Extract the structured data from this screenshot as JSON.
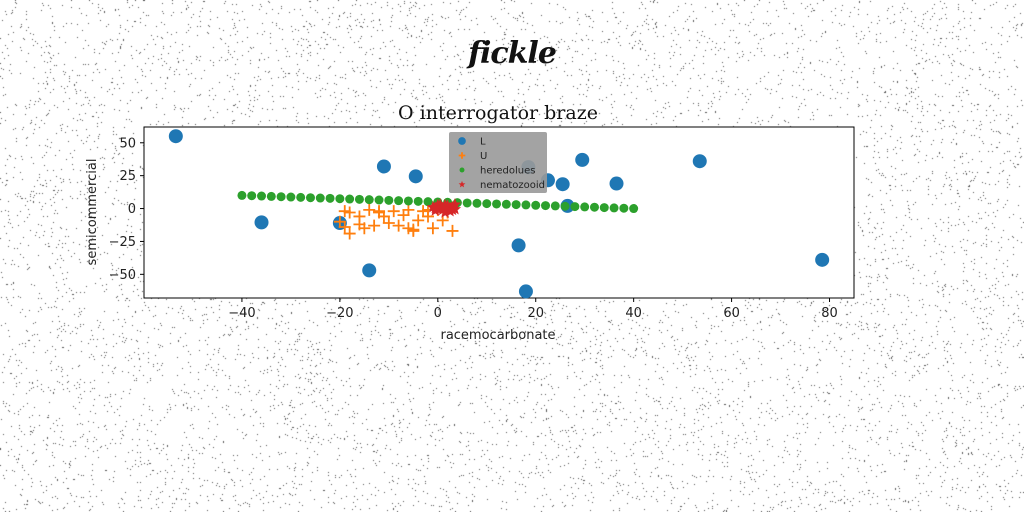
{
  "heading": "fickle",
  "chart_data": {
    "type": "scatter",
    "title": "O interrogator braze",
    "xlabel": "racemocarbonate",
    "ylabel": "semicommercial",
    "xlim": [
      -60,
      85
    ],
    "ylim": [
      -68,
      62
    ],
    "xticks": [
      -40,
      -20,
      0,
      20,
      40,
      60,
      80
    ],
    "yticks": [
      -50,
      -25,
      0,
      25,
      50
    ],
    "grid": false,
    "legend_position": "top-center",
    "series": [
      {
        "name": "L",
        "marker": "circle",
        "color": "#1f77b4",
        "points": [
          [
            -53.5,
            55
          ],
          [
            -36,
            -10.5
          ],
          [
            -20,
            -11
          ],
          [
            -14,
            -47
          ],
          [
            -11,
            32
          ],
          [
            -4.5,
            24.5
          ],
          [
            18.5,
            31.5
          ],
          [
            22.5,
            21.5
          ],
          [
            25.5,
            18.5
          ],
          [
            26.5,
            2
          ],
          [
            29.5,
            37
          ],
          [
            36.5,
            19
          ],
          [
            53.5,
            36
          ],
          [
            78.5,
            -39
          ],
          [
            16.5,
            -28
          ],
          [
            18,
            -63
          ]
        ]
      },
      {
        "name": "U",
        "marker": "plus",
        "color": "#ff7f0e",
        "points": [
          [
            -20,
            -10
          ],
          [
            -19,
            -14
          ],
          [
            -18,
            -19
          ],
          [
            -19,
            -2
          ],
          [
            -16,
            -6
          ],
          [
            -15,
            -15
          ],
          [
            -14,
            -1
          ],
          [
            -13,
            -13
          ],
          [
            -12,
            -3
          ],
          [
            -11,
            -6
          ],
          [
            -10,
            -11
          ],
          [
            -9,
            -2
          ],
          [
            -8,
            -13
          ],
          [
            -7,
            -5
          ],
          [
            -6,
            -1
          ],
          [
            -5,
            -16
          ],
          [
            -5,
            -17
          ],
          [
            -4,
            -9
          ],
          [
            -3,
            -2
          ],
          [
            -2,
            -6
          ],
          [
            -1,
            -15
          ],
          [
            0,
            -1
          ],
          [
            1,
            -9
          ],
          [
            2,
            -3
          ],
          [
            3,
            -17
          ],
          [
            -16,
            -12
          ],
          [
            -12,
            -2
          ],
          [
            -6,
            -15
          ],
          [
            -18,
            -3
          ],
          [
            -2,
            -1
          ]
        ]
      },
      {
        "name": "heredolues",
        "marker": "circle-small",
        "color": "#2ca02c",
        "points": [
          [
            -40,
            10
          ],
          [
            -38,
            9.75
          ],
          [
            -36,
            9.5
          ],
          [
            -34,
            9.25
          ],
          [
            -32,
            9
          ],
          [
            -30,
            8.75
          ],
          [
            -28,
            8.5
          ],
          [
            -26,
            8.25
          ],
          [
            -24,
            8
          ],
          [
            -22,
            7.75
          ],
          [
            -20,
            7.5
          ],
          [
            -18,
            7.25
          ],
          [
            -16,
            7
          ],
          [
            -14,
            6.75
          ],
          [
            -12,
            6.5
          ],
          [
            -10,
            6.25
          ],
          [
            -8,
            6
          ],
          [
            -6,
            5.75
          ],
          [
            -4,
            5.5
          ],
          [
            -2,
            5.25
          ],
          [
            0,
            5
          ],
          [
            2,
            4.75
          ],
          [
            4,
            4.5
          ],
          [
            6,
            4.25
          ],
          [
            8,
            4
          ],
          [
            10,
            3.75
          ],
          [
            12,
            3.5
          ],
          [
            14,
            3.25
          ],
          [
            16,
            3
          ],
          [
            18,
            2.75
          ],
          [
            20,
            2.5
          ],
          [
            22,
            2.25
          ],
          [
            24,
            2
          ],
          [
            26,
            1.75
          ],
          [
            28,
            1.5
          ],
          [
            30,
            1.25
          ],
          [
            32,
            1
          ],
          [
            34,
            0.75
          ],
          [
            36,
            0.5
          ],
          [
            38,
            0.25
          ],
          [
            40,
            0
          ]
        ]
      },
      {
        "name": "nematozooid",
        "marker": "star",
        "color": "#d62728",
        "points": [
          [
            0,
            0
          ],
          [
            0.5,
            1.5
          ],
          [
            1,
            -1
          ],
          [
            1.5,
            2.5
          ],
          [
            2,
            0.5
          ],
          [
            2.5,
            -2
          ],
          [
            3,
            1
          ],
          [
            3.5,
            3
          ],
          [
            -0.5,
            -1.5
          ],
          [
            0.5,
            3
          ],
          [
            1.5,
            -3
          ],
          [
            2,
            2
          ],
          [
            -1,
            1
          ],
          [
            3,
            -1
          ],
          [
            0,
            2.5
          ],
          [
            2.5,
            0
          ],
          [
            1,
            0.5
          ],
          [
            -0.5,
            0.5
          ],
          [
            1.5,
            1
          ],
          [
            3.5,
            -0.5
          ]
        ]
      }
    ]
  }
}
